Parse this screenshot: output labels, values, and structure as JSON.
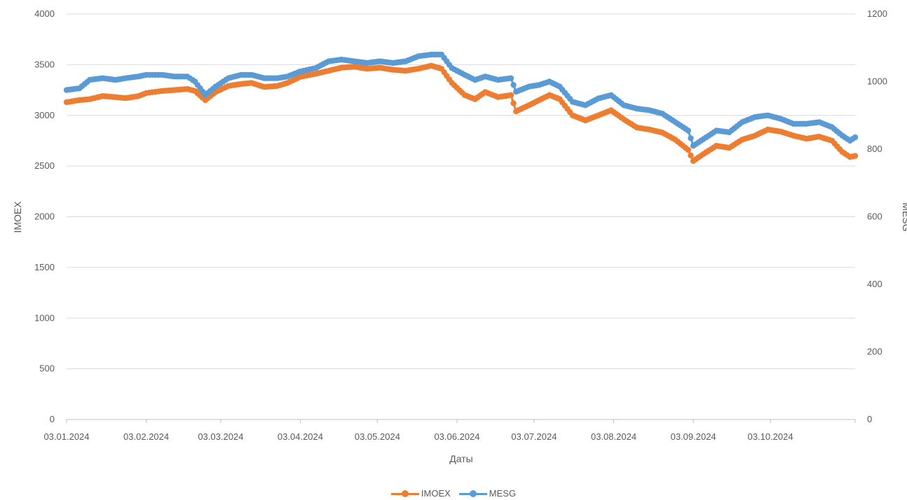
{
  "chart_data": {
    "type": "line",
    "xlabel": "Даты",
    "ylabel_left": "IMOEX",
    "ylabel_right": "MESG",
    "ylim_left": [
      0,
      4000
    ],
    "ylim_right": [
      0,
      1200
    ],
    "yticks_left": [
      "0",
      "500",
      "1000",
      "1500",
      "2000",
      "2500",
      "3000",
      "3500",
      "4000"
    ],
    "yticks_right": [
      "0",
      "200",
      "400",
      "600",
      "800",
      "1000",
      "1200"
    ],
    "xtick_labels": [
      "03.01.2024",
      "03.02.2024",
      "03.03.2024",
      "03.04.2024",
      "03.05.2024",
      "03.06.2024",
      "03.07.2024",
      "03.08.2024",
      "03.09.2024",
      "03.10.2024"
    ],
    "x_range": [
      "2024-01-03",
      "2024-11-05"
    ],
    "grid": "horizontal",
    "legend_position": "bottom",
    "series": [
      {
        "name": "IMOEX",
        "axis": "left",
        "color": "#ED7D31",
        "points": [
          [
            "2024-01-03",
            3130
          ],
          [
            "2024-01-08",
            3150
          ],
          [
            "2024-01-12",
            3160
          ],
          [
            "2024-01-17",
            3190
          ],
          [
            "2024-01-22",
            3180
          ],
          [
            "2024-01-26",
            3170
          ],
          [
            "2024-01-31",
            3190
          ],
          [
            "2024-02-03",
            3220
          ],
          [
            "2024-02-09",
            3240
          ],
          [
            "2024-02-14",
            3250
          ],
          [
            "2024-02-19",
            3260
          ],
          [
            "2024-02-22",
            3240
          ],
          [
            "2024-02-26",
            3150
          ],
          [
            "2024-03-01",
            3230
          ],
          [
            "2024-03-06",
            3290
          ],
          [
            "2024-03-11",
            3310
          ],
          [
            "2024-03-15",
            3320
          ],
          [
            "2024-03-20",
            3280
          ],
          [
            "2024-03-25",
            3290
          ],
          [
            "2024-03-29",
            3320
          ],
          [
            "2024-04-03",
            3380
          ],
          [
            "2024-04-09",
            3410
          ],
          [
            "2024-04-14",
            3440
          ],
          [
            "2024-04-19",
            3470
          ],
          [
            "2024-04-24",
            3480
          ],
          [
            "2024-04-29",
            3460
          ],
          [
            "2024-05-04",
            3470
          ],
          [
            "2024-05-09",
            3450
          ],
          [
            "2024-05-14",
            3440
          ],
          [
            "2024-05-19",
            3460
          ],
          [
            "2024-05-24",
            3490
          ],
          [
            "2024-05-28",
            3460
          ],
          [
            "2024-06-01",
            3320
          ],
          [
            "2024-06-06",
            3200
          ],
          [
            "2024-06-10",
            3160
          ],
          [
            "2024-06-14",
            3230
          ],
          [
            "2024-06-19",
            3180
          ],
          [
            "2024-06-24",
            3200
          ],
          [
            "2024-06-26",
            3040
          ],
          [
            "2024-07-01",
            3100
          ],
          [
            "2024-07-05",
            3150
          ],
          [
            "2024-07-09",
            3200
          ],
          [
            "2024-07-13",
            3160
          ],
          [
            "2024-07-18",
            3000
          ],
          [
            "2024-07-23",
            2950
          ],
          [
            "2024-07-28",
            3000
          ],
          [
            "2024-08-02",
            3050
          ],
          [
            "2024-08-07",
            2960
          ],
          [
            "2024-08-12",
            2880
          ],
          [
            "2024-08-17",
            2860
          ],
          [
            "2024-08-22",
            2830
          ],
          [
            "2024-08-27",
            2760
          ],
          [
            "2024-09-01",
            2660
          ],
          [
            "2024-09-03",
            2550
          ],
          [
            "2024-09-07",
            2620
          ],
          [
            "2024-09-12",
            2700
          ],
          [
            "2024-09-17",
            2680
          ],
          [
            "2024-09-22",
            2760
          ],
          [
            "2024-09-27",
            2800
          ],
          [
            "2024-10-02",
            2860
          ],
          [
            "2024-10-07",
            2840
          ],
          [
            "2024-10-12",
            2800
          ],
          [
            "2024-10-17",
            2770
          ],
          [
            "2024-10-22",
            2790
          ],
          [
            "2024-10-27",
            2750
          ],
          [
            "2024-10-31",
            2640
          ],
          [
            "2024-11-03",
            2590
          ],
          [
            "2024-11-05",
            2600
          ]
        ]
      },
      {
        "name": "MESG",
        "axis": "right",
        "color": "#5B9BD5",
        "points": [
          [
            "2024-01-03",
            975
          ],
          [
            "2024-01-08",
            980
          ],
          [
            "2024-01-12",
            1005
          ],
          [
            "2024-01-17",
            1010
          ],
          [
            "2024-01-22",
            1005
          ],
          [
            "2024-01-26",
            1010
          ],
          [
            "2024-01-31",
            1015
          ],
          [
            "2024-02-03",
            1020
          ],
          [
            "2024-02-09",
            1020
          ],
          [
            "2024-02-14",
            1015
          ],
          [
            "2024-02-19",
            1015
          ],
          [
            "2024-02-22",
            1000
          ],
          [
            "2024-02-26",
            960
          ],
          [
            "2024-03-01",
            985
          ],
          [
            "2024-03-06",
            1010
          ],
          [
            "2024-03-11",
            1020
          ],
          [
            "2024-03-15",
            1020
          ],
          [
            "2024-03-20",
            1010
          ],
          [
            "2024-03-25",
            1010
          ],
          [
            "2024-03-29",
            1015
          ],
          [
            "2024-04-03",
            1030
          ],
          [
            "2024-04-09",
            1040
          ],
          [
            "2024-04-14",
            1060
          ],
          [
            "2024-04-19",
            1065
          ],
          [
            "2024-04-24",
            1060
          ],
          [
            "2024-04-29",
            1055
          ],
          [
            "2024-05-04",
            1060
          ],
          [
            "2024-05-09",
            1055
          ],
          [
            "2024-05-14",
            1060
          ],
          [
            "2024-05-19",
            1075
          ],
          [
            "2024-05-24",
            1080
          ],
          [
            "2024-05-28",
            1080
          ],
          [
            "2024-06-01",
            1040
          ],
          [
            "2024-06-06",
            1020
          ],
          [
            "2024-06-10",
            1005
          ],
          [
            "2024-06-14",
            1015
          ],
          [
            "2024-06-19",
            1005
          ],
          [
            "2024-06-24",
            1010
          ],
          [
            "2024-06-26",
            970
          ],
          [
            "2024-07-01",
            985
          ],
          [
            "2024-07-05",
            990
          ],
          [
            "2024-07-09",
            1000
          ],
          [
            "2024-07-13",
            985
          ],
          [
            "2024-07-18",
            940
          ],
          [
            "2024-07-23",
            930
          ],
          [
            "2024-07-28",
            950
          ],
          [
            "2024-08-02",
            960
          ],
          [
            "2024-08-07",
            930
          ],
          [
            "2024-08-12",
            920
          ],
          [
            "2024-08-17",
            915
          ],
          [
            "2024-08-22",
            905
          ],
          [
            "2024-08-27",
            880
          ],
          [
            "2024-09-01",
            855
          ],
          [
            "2024-09-03",
            810
          ],
          [
            "2024-09-07",
            830
          ],
          [
            "2024-09-12",
            855
          ],
          [
            "2024-09-17",
            850
          ],
          [
            "2024-09-22",
            880
          ],
          [
            "2024-09-27",
            895
          ],
          [
            "2024-10-02",
            900
          ],
          [
            "2024-10-07",
            890
          ],
          [
            "2024-10-12",
            875
          ],
          [
            "2024-10-17",
            875
          ],
          [
            "2024-10-22",
            880
          ],
          [
            "2024-10-27",
            865
          ],
          [
            "2024-10-31",
            840
          ],
          [
            "2024-11-03",
            825
          ],
          [
            "2024-11-05",
            835
          ]
        ]
      }
    ]
  }
}
